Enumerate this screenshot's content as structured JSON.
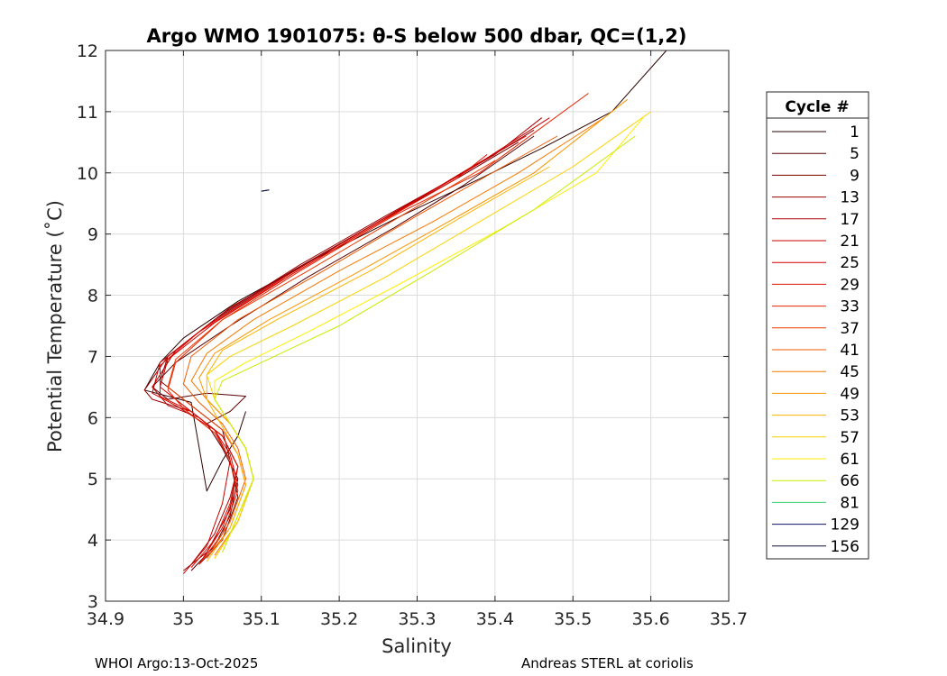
{
  "chart_data": {
    "type": "line",
    "title": "Argo WMO 1901075: θ-S below 500 dbar,  QC=(1,2)",
    "xlabel": "Salinity",
    "ylabel": "Potential Temperature (˚C)",
    "xlim": [
      34.9,
      35.7
    ],
    "ylim": [
      3,
      12
    ],
    "xticks": [
      "34.9",
      "35",
      "35.1",
      "35.2",
      "35.3",
      "35.4",
      "35.5",
      "35.6",
      "35.7"
    ],
    "yticks": [
      "3",
      "4",
      "5",
      "6",
      "7",
      "8",
      "9",
      "10",
      "11",
      "12"
    ],
    "grid": true,
    "legend": {
      "title": "Cycle #",
      "placement": "right-outside",
      "entries": [
        "1",
        "5",
        "9",
        "13",
        "17",
        "21",
        "25",
        "29",
        "33",
        "37",
        "41",
        "45",
        "49",
        "53",
        "57",
        "61",
        "66",
        "81",
        "129",
        "156"
      ],
      "colors": [
        "#2a0000",
        "#5a0000",
        "#7a0000",
        "#9a0000",
        "#b00000",
        "#c80000",
        "#d40000",
        "#e01000",
        "#e82400",
        "#ee3a00",
        "#f25a00",
        "#f67800",
        "#f99600",
        "#fcb400",
        "#fdd200",
        "#ffee00",
        "#c8ec00",
        "#3cd070",
        "#101060",
        "#10103a"
      ]
    },
    "series": [
      {
        "color": "#2a0000",
        "x": [
          35.08,
          35.07,
          35.05,
          35.03,
          35.01,
          34.95,
          34.97,
          35.0,
          35.07,
          35.17,
          35.28,
          35.38,
          35.46,
          35.55,
          35.62
        ],
        "y": [
          6.1,
          5.7,
          5.3,
          4.8,
          6.25,
          6.45,
          6.9,
          7.3,
          7.9,
          8.6,
          9.3,
          9.9,
          10.4,
          11.0,
          12.0
        ]
      },
      {
        "color": "#5a0000",
        "x": [
          35.01,
          35.04,
          35.06,
          35.07,
          35.05,
          35.03,
          35.06,
          35.08,
          35.03,
          34.98,
          34.96,
          34.99,
          35.06,
          35.16,
          35.27,
          35.36,
          35.45
        ],
        "y": [
          3.5,
          3.9,
          4.4,
          5.0,
          5.5,
          5.9,
          6.1,
          6.35,
          6.4,
          6.3,
          6.5,
          6.9,
          7.5,
          8.3,
          9.1,
          9.8,
          10.6
        ]
      },
      {
        "color": "#7a0000",
        "x": [
          35.02,
          35.05,
          35.07,
          35.06,
          35.05,
          35.0,
          34.97,
          34.98,
          35.04,
          35.14,
          35.25,
          35.35,
          35.43
        ],
        "y": [
          3.6,
          4.0,
          4.7,
          5.3,
          5.8,
          6.3,
          6.6,
          7.0,
          7.6,
          8.4,
          9.2,
          9.9,
          10.5
        ]
      },
      {
        "color": "#9a0000",
        "x": [
          35.0,
          35.03,
          35.06,
          35.07,
          35.05,
          35.01,
          34.96,
          34.95,
          34.98,
          35.05,
          35.15,
          35.26,
          35.36,
          35.45
        ],
        "y": [
          3.5,
          3.8,
          4.5,
          5.2,
          5.7,
          6.1,
          6.3,
          6.45,
          7.0,
          7.7,
          8.5,
          9.3,
          10.0,
          10.7
        ]
      },
      {
        "color": "#b00000",
        "x": [
          35.01,
          35.04,
          35.06,
          35.07,
          35.05,
          35.02,
          34.98,
          34.96,
          34.99,
          35.06,
          35.17,
          35.29,
          35.4,
          35.46
        ],
        "y": [
          3.6,
          4.1,
          4.7,
          5.2,
          5.7,
          6.0,
          6.2,
          6.5,
          7.1,
          7.8,
          8.6,
          9.5,
          10.3,
          10.9
        ]
      },
      {
        "color": "#c80000",
        "x": [
          35.0,
          35.03,
          35.05,
          35.06,
          35.04,
          34.99,
          34.96,
          34.97,
          35.03,
          35.13,
          35.25,
          35.36,
          35.47
        ],
        "y": [
          3.45,
          3.9,
          4.6,
          5.3,
          5.8,
          6.2,
          6.4,
          6.9,
          7.5,
          8.3,
          9.2,
          10.0,
          10.9
        ]
      },
      {
        "color": "#d40000",
        "x": [
          35.02,
          35.05,
          35.07,
          35.06,
          35.04,
          35.0,
          34.97,
          34.98,
          35.04,
          35.14,
          35.26,
          35.37,
          35.44
        ],
        "y": [
          3.6,
          4.2,
          4.9,
          5.4,
          5.8,
          6.2,
          6.5,
          6.95,
          7.55,
          8.35,
          9.25,
          10.1,
          10.6
        ]
      },
      {
        "color": "#e01000",
        "x": [
          35.01,
          35.04,
          35.06,
          35.07,
          35.05,
          35.01,
          34.97,
          34.97,
          35.02,
          35.12,
          35.24,
          35.35,
          35.39
        ],
        "y": [
          3.55,
          4.0,
          4.6,
          5.2,
          5.7,
          6.1,
          6.35,
          6.85,
          7.4,
          8.2,
          9.1,
          9.9,
          10.3
        ]
      },
      {
        "color": "#e82400",
        "x": [
          35.02,
          35.05,
          35.07,
          35.06,
          35.04,
          35.0,
          34.98,
          34.99,
          35.05,
          35.15,
          35.27,
          35.38,
          35.52
        ],
        "y": [
          3.6,
          4.1,
          4.8,
          5.3,
          5.75,
          6.15,
          6.45,
          6.9,
          7.6,
          8.4,
          9.3,
          10.0,
          11.3
        ]
      },
      {
        "color": "#ee3a00",
        "x": [
          35.03,
          35.06,
          35.08,
          35.07,
          35.05,
          35.01,
          34.98,
          34.99,
          35.05,
          35.16,
          35.28,
          35.4
        ],
        "y": [
          3.7,
          4.2,
          4.9,
          5.4,
          5.8,
          6.2,
          6.5,
          6.95,
          7.6,
          8.4,
          9.3,
          10.2
        ]
      },
      {
        "color": "#f25a00",
        "x": [
          35.03,
          35.06,
          35.08,
          35.07,
          35.05,
          35.02,
          35.0,
          35.01,
          35.07,
          35.18,
          35.3,
          35.41,
          35.48
        ],
        "y": [
          3.7,
          4.3,
          5.0,
          5.5,
          5.9,
          6.25,
          6.55,
          7.0,
          7.6,
          8.4,
          9.3,
          10.1,
          10.6
        ]
      },
      {
        "color": "#f67800",
        "x": [
          35.04,
          35.07,
          35.09,
          35.08,
          35.06,
          35.03,
          35.01,
          35.03,
          35.09,
          35.2,
          35.32,
          35.43,
          35.54
        ],
        "y": [
          3.75,
          4.3,
          5.0,
          5.5,
          5.9,
          6.3,
          6.6,
          7.05,
          7.6,
          8.4,
          9.2,
          10.0,
          10.9
        ]
      },
      {
        "color": "#f99600",
        "x": [
          35.04,
          35.07,
          35.09,
          35.08,
          35.06,
          35.03,
          35.02,
          35.04,
          35.11,
          35.22,
          35.34,
          35.45,
          35.57
        ],
        "y": [
          3.7,
          4.3,
          5.0,
          5.5,
          5.9,
          6.3,
          6.65,
          7.05,
          7.6,
          8.35,
          9.2,
          10.0,
          11.2
        ]
      },
      {
        "color": "#fcb400",
        "x": [
          35.03,
          35.06,
          35.08,
          35.07,
          35.05,
          35.03,
          35.03,
          35.05,
          35.12,
          35.24,
          35.36,
          35.47
        ],
        "y": [
          3.65,
          4.2,
          4.9,
          5.4,
          5.85,
          6.3,
          6.7,
          7.1,
          7.6,
          8.4,
          9.3,
          10.1
        ]
      },
      {
        "color": "#fdd200",
        "x": [
          35.04,
          35.07,
          35.09,
          35.08,
          35.06,
          35.04,
          35.03,
          35.06,
          35.14,
          35.26,
          35.38,
          35.5,
          35.6
        ],
        "y": [
          3.7,
          4.3,
          5.0,
          5.5,
          5.9,
          6.3,
          6.7,
          7.0,
          7.5,
          8.3,
          9.2,
          10.1,
          11.0
        ]
      },
      {
        "color": "#ffee00",
        "x": [
          35.05,
          35.07,
          35.09,
          35.08,
          35.06,
          35.04,
          35.04,
          35.08,
          35.16,
          35.28,
          35.41,
          35.53,
          35.59
        ],
        "y": [
          3.8,
          4.4,
          5.0,
          5.5,
          5.9,
          6.3,
          6.6,
          6.9,
          7.4,
          8.2,
          9.1,
          10.0,
          10.9
        ]
      },
      {
        "color": "#c8ec00",
        "x": [
          35.05,
          35.07,
          35.09,
          35.08,
          35.06,
          35.04,
          35.05,
          35.1,
          35.2,
          35.32,
          35.45,
          35.58
        ],
        "y": [
          3.8,
          4.4,
          5.0,
          5.5,
          5.9,
          6.3,
          6.6,
          6.9,
          7.5,
          8.4,
          9.4,
          10.6
        ]
      },
      {
        "color": "#3cd070",
        "x": [
          35.1,
          35.11
        ],
        "y": [
          9.7,
          9.72
        ]
      },
      {
        "color": "#101060",
        "x": [
          35.1,
          35.11
        ],
        "y": [
          9.7,
          9.72
        ]
      },
      {
        "color": "#10103a",
        "x": [
          35.1,
          35.11
        ],
        "y": [
          9.7,
          9.72
        ]
      }
    ]
  },
  "footer": {
    "left": "WHOI Argo:13-Oct-2025",
    "right": "Andreas STERL at coriolis"
  }
}
